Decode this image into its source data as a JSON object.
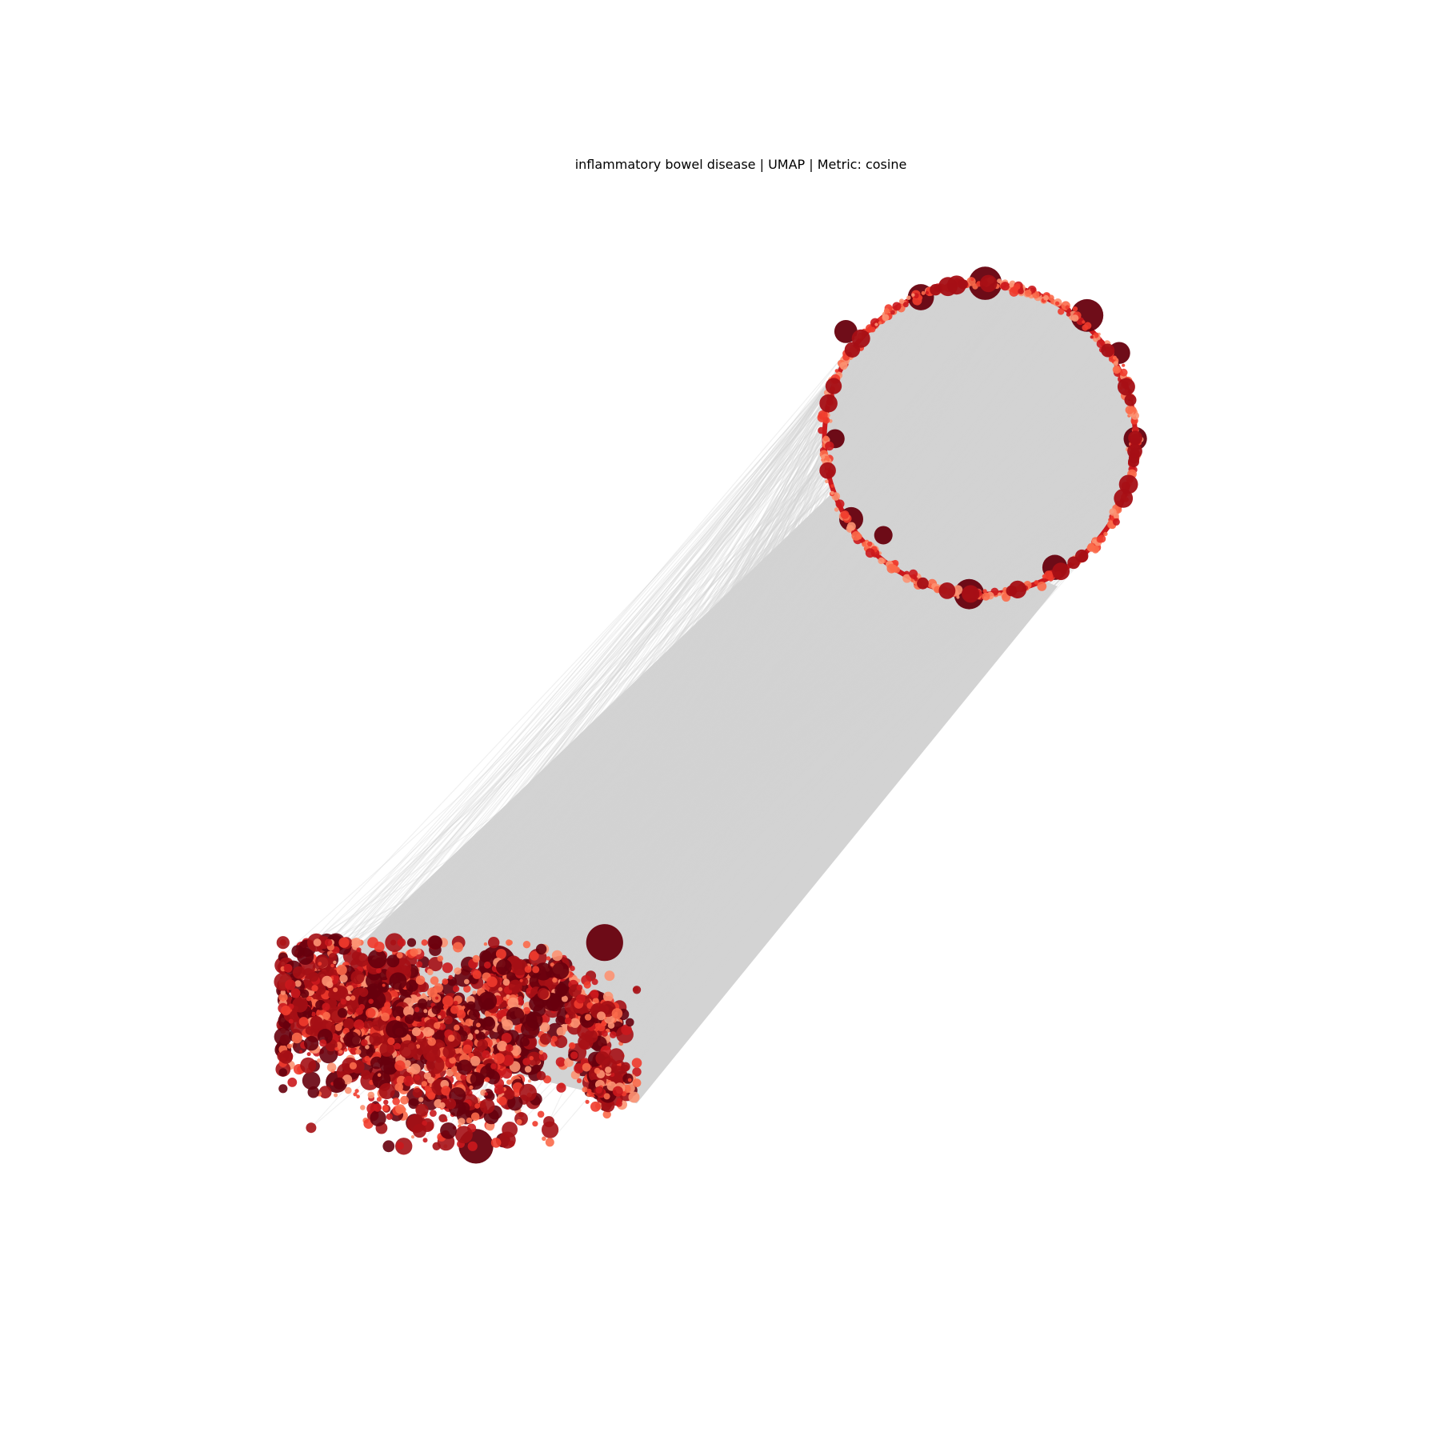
{
  "chart_data": {
    "type": "scatter",
    "title": "inflammatory bowel disease | UMAP | Metric: cosine",
    "xlabel": "",
    "ylabel": "",
    "axes_visible": false,
    "grid": false,
    "legend": "none",
    "colormap": [
      "#67000d",
      "#a50f15",
      "#cb181d",
      "#ef3b2c",
      "#fb6a4a",
      "#fc9272"
    ],
    "edge_color": "#d3d3d3",
    "xlim": [
      0,
      1
    ],
    "ylim": [
      0,
      1
    ],
    "series": [
      {
        "group": "ring",
        "center": [
          0.72,
          0.74
        ],
        "radius": 0.145,
        "n_points": 420,
        "large_points": [
          [
            0.725,
            0.885
          ],
          [
            0.665,
            0.872
          ],
          [
            0.595,
            0.84
          ],
          [
            0.585,
            0.74
          ],
          [
            0.865,
            0.74
          ],
          [
            0.63,
            0.65
          ],
          [
            0.71,
            0.595
          ],
          [
            0.85,
            0.82
          ],
          [
            0.6,
            0.665
          ],
          [
            0.82,
            0.855
          ],
          [
            0.79,
            0.62
          ]
        ]
      },
      {
        "group": "cluster",
        "n_points": 2200,
        "extent": {
          "x": [
            0.07,
            0.4
          ],
          "y": [
            0.08,
            0.27
          ]
        },
        "large_points": [
          [
            0.38,
            0.195
          ],
          [
            0.07,
            0.17
          ],
          [
            0.12,
            0.14
          ],
          [
            0.27,
            0.25
          ],
          [
            0.3,
            0.16
          ],
          [
            0.25,
            0.08
          ],
          [
            0.37,
            0.27
          ],
          [
            0.33,
            0.23
          ]
        ]
      }
    ],
    "edges": {
      "between": [
        "ring",
        "cluster"
      ],
      "count": 600
    }
  }
}
